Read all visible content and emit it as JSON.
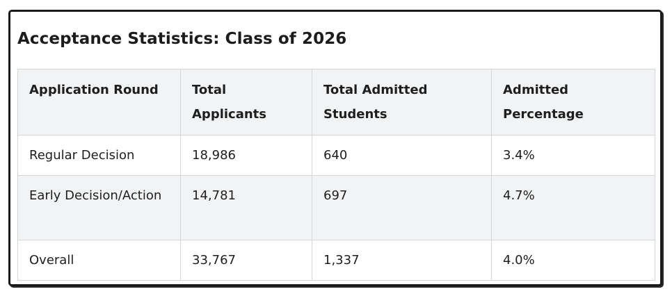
{
  "title": "Acceptance Statistics: Class of 2026",
  "table": {
    "headers": [
      "Application Round",
      "Total Applicants",
      "Total Admitted Students",
      "Admitted Percentage"
    ],
    "rows": [
      [
        "Regular Decision",
        "18,986",
        "640",
        "3.4%"
      ],
      [
        "Early Decision/Action",
        "14,781",
        "697",
        "4.7%"
      ],
      [
        "Overall",
        "33,767",
        "1,337",
        "4.0%"
      ]
    ]
  },
  "colors": {
    "header_bg": "#f2f3f4",
    "stripe_bg": "#f2f3f4",
    "border": "#d4d6d9",
    "text": "#1e1e1e",
    "frame": "#1a1a1a"
  }
}
